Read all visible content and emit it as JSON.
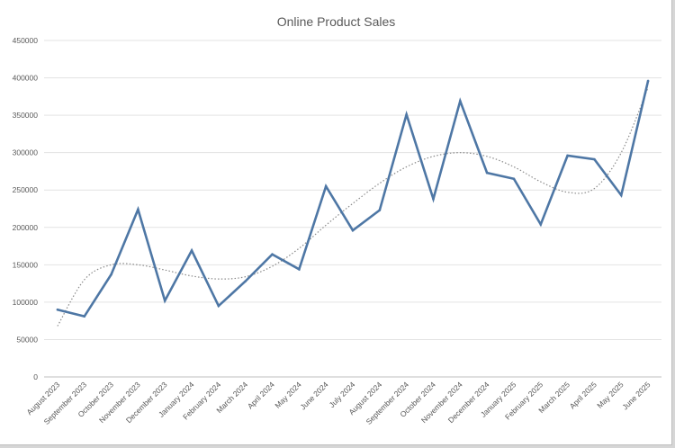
{
  "chart_data": {
    "type": "line",
    "title": "Online Product Sales",
    "xlabel": "",
    "ylabel": "",
    "categories": [
      "August 2023",
      "September 2023",
      "October 2023",
      "November 2023",
      "December 2023",
      "January 2024",
      "February 2024",
      "March 2024",
      "April 2024",
      "May 2024",
      "June 2024",
      "July 2024",
      "August 2024",
      "September 2024",
      "October 2024",
      "November 2024",
      "December 2024",
      "January 2025",
      "February 2025",
      "March 2025",
      "April 2025",
      "May 2025",
      "June 2025"
    ],
    "series": [
      {
        "values": [
          90000,
          81000,
          137000,
          224000,
          102000,
          169000,
          95000,
          128000,
          164000,
          144000,
          255000,
          196000,
          223000,
          351000,
          238000,
          369000,
          273000,
          265000,
          204000,
          296000,
          291000,
          243000,
          396000
        ],
        "color": "#4e77a5"
      }
    ],
    "trendline": {
      "type": "polynomial",
      "style": "dotted",
      "color": "#8a8a8a",
      "values": [
        68000,
        130000,
        150000,
        150000,
        143000,
        135000,
        131000,
        134000,
        148000,
        172000,
        203000,
        232000,
        259000,
        281000,
        295000,
        300000,
        295000,
        281000,
        261000,
        247000,
        252000,
        300000,
        387000
      ]
    },
    "ylim": [
      0,
      450000
    ],
    "yticks": [
      0,
      50000,
      100000,
      150000,
      200000,
      250000,
      300000,
      350000,
      400000,
      450000
    ],
    "grid": true,
    "legend": "none"
  }
}
